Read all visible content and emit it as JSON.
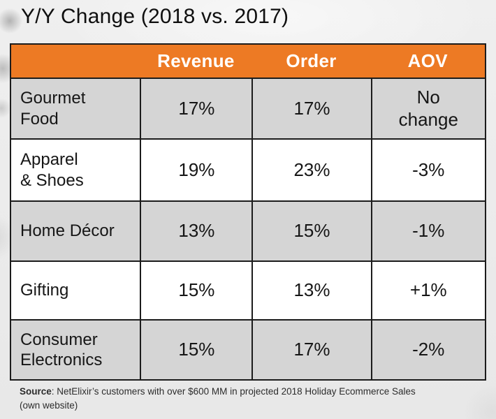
{
  "page": {
    "title": "Y/Y Change (2018 vs. 2017)"
  },
  "table": {
    "columns": [
      "Revenue",
      "Order",
      "AOV"
    ],
    "rows": [
      {
        "category": "Gourmet\nFood",
        "revenue": "17%",
        "order": "17%",
        "aov": "No\nchange"
      },
      {
        "category": "Apparel\n& Shoes",
        "revenue": "19%",
        "order": "23%",
        "aov": "-3%"
      },
      {
        "category": "Home Décor",
        "revenue": "13%",
        "order": "15%",
        "aov": "-1%"
      },
      {
        "category": "Gifting",
        "revenue": "15%",
        "order": "13%",
        "aov": "+1%"
      },
      {
        "category": "Consumer\nElectronics",
        "revenue": "15%",
        "order": "17%",
        "aov": "-2%"
      }
    ]
  },
  "footer": {
    "source_label": "Source",
    "source_text": ": NetElixir’s customers with over $600 MM in projected 2018 Holiday Ecommerce Sales (own website)"
  },
  "colors": {
    "header_bg": "#ED7A24",
    "header_text": "#FFFFFF",
    "row_shaded_bg": "#D5D5D5",
    "row_plain_bg": "#FFFFFF",
    "border": "#1C1C1C",
    "title_text": "#0F0F0F"
  },
  "chart_data": {
    "type": "table",
    "title": "Y/Y Change (2018 vs. 2017)",
    "categories": [
      "Gourmet Food",
      "Apparel & Shoes",
      "Home Décor",
      "Gifting",
      "Consumer Electronics"
    ],
    "series": [
      {
        "name": "Revenue",
        "values": [
          "17%",
          "19%",
          "13%",
          "15%",
          "15%"
        ]
      },
      {
        "name": "Order",
        "values": [
          "17%",
          "23%",
          "15%",
          "13%",
          "17%"
        ]
      },
      {
        "name": "AOV",
        "values": [
          "No change",
          "-3%",
          "-1%",
          "+1%",
          "-2%"
        ]
      }
    ],
    "source": "Source: NetElixir’s customers with over $600 MM in projected 2018 Holiday Ecommerce Sales (own website)"
  }
}
